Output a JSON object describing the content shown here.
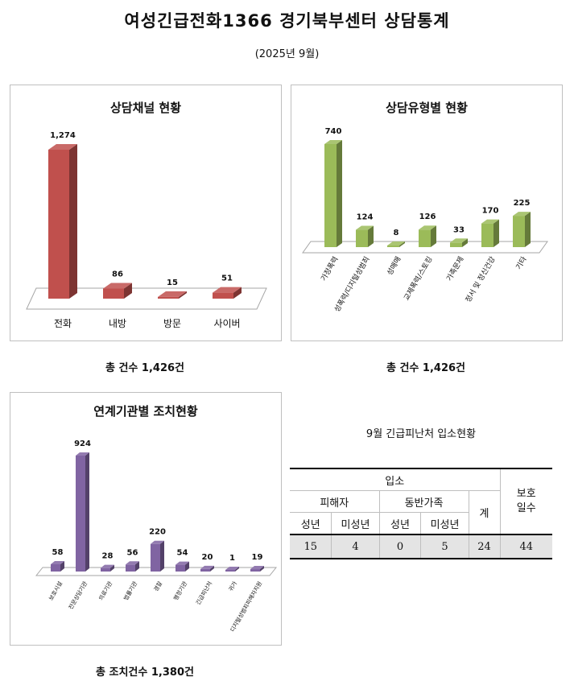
{
  "header": {
    "title": "여성긴급전화1366 경기북부센터 상담통계",
    "period": "(2025년 9월)"
  },
  "chart_data": [
    {
      "type": "bar",
      "title": "상담채널 현황",
      "categories": [
        "전화",
        "내방",
        "방문",
        "사이버"
      ],
      "values": [
        1274,
        86,
        15,
        51
      ],
      "value_labels": [
        "1,274",
        "86",
        "15",
        "51"
      ],
      "color": "#c0504d",
      "total_text": "총 건수 1,426건"
    },
    {
      "type": "bar",
      "title": "상담유형별 현황",
      "categories": [
        "가정폭력",
        "성폭력/디지털성범죄",
        "성매매",
        "교제폭력/스토킹",
        "가족문제",
        "정서 및 정신건강",
        "기타"
      ],
      "values": [
        740,
        124,
        8,
        126,
        33,
        170,
        225
      ],
      "value_labels": [
        "740",
        "124",
        "8",
        "126",
        "33",
        "170",
        "225"
      ],
      "color": "#9bbb59",
      "total_text": "총 건수 1,426건"
    },
    {
      "type": "bar",
      "title": "연계기관별 조치현황",
      "categories": [
        "보호시설",
        "전문상담기관",
        "의료기관",
        "법률기관",
        "경찰",
        "행정기관",
        "긴급피난처",
        "귀가",
        "디지털성범죄피해자지원"
      ],
      "values": [
        58,
        924,
        28,
        56,
        220,
        54,
        20,
        1,
        19
      ],
      "value_labels": [
        "58",
        "924",
        "28",
        "56",
        "220",
        "54",
        "20",
        "1",
        "19"
      ],
      "color": "#8064a2",
      "total_text": "총 조치건수 1,380건"
    }
  ],
  "shelter_table": {
    "title": "9월 긴급피난처 입소현황",
    "admission_header": "입소",
    "victim_header": "피해자",
    "family_header": "동반가족",
    "total_header": "계",
    "protection_days_header": "보호\n일수",
    "adult_label": "성년",
    "minor_label": "미성년",
    "victim_adult": "15",
    "victim_minor": "4",
    "family_adult": "0",
    "family_minor": "5",
    "total": "24",
    "protection_days": "44"
  }
}
